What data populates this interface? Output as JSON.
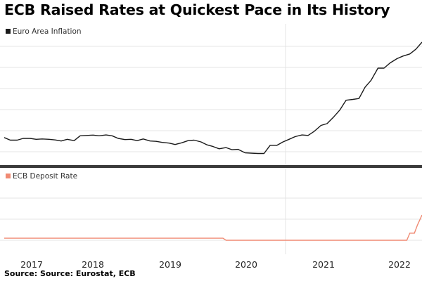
{
  "title": "ECB Raised Rates at Quickest Pace in Its History",
  "source": "Source: Source: Eurostat, ECB",
  "colors": {
    "inflation": "#1a1a1a",
    "deposit_rate": "#f08a73",
    "gridline": "#e4e4e4",
    "divider": "#3a3a3a"
  },
  "chart_data": [
    {
      "type": "line",
      "title": "",
      "legend": "Euro Area Inflation",
      "legend_placement": "top-left",
      "grid": true,
      "x_tick_labels": [
        "2017",
        "2018",
        "2019",
        "2020",
        "2021",
        "2022"
      ],
      "series": [
        {
          "name": "Euro Area Inflation",
          "x": [
            2016.8,
            2016.88,
            2016.97,
            2017.05,
            2017.14,
            2017.22,
            2017.3,
            2017.39,
            2017.47,
            2017.55,
            2017.63,
            2017.72,
            2017.8,
            2017.88,
            2017.97,
            2018.05,
            2018.14,
            2018.22,
            2018.3,
            2018.39,
            2018.47,
            2018.55,
            2018.63,
            2018.72,
            2018.8,
            2018.88,
            2018.97,
            2019.05,
            2019.14,
            2019.22,
            2019.3,
            2019.39,
            2019.47,
            2019.55,
            2019.63,
            2019.72,
            2019.8,
            2019.88,
            2019.97,
            2020.05,
            2020.14,
            2020.22,
            2020.3,
            2020.39,
            2020.47,
            2020.55,
            2020.63,
            2020.72,
            2020.8,
            2020.88,
            2020.97,
            2021.05,
            2021.14,
            2021.22,
            2021.3,
            2021.39,
            2021.47,
            2021.55,
            2021.63,
            2021.72,
            2021.8,
            2021.88,
            2021.97,
            2022.05,
            2022.14,
            2022.22,
            2022.3
          ],
          "values": [
            0.9,
            0.75,
            0.75,
            0.85,
            0.85,
            0.8,
            0.82,
            0.8,
            0.76,
            0.7,
            0.8,
            0.72,
            1.0,
            1.02,
            1.04,
            1.0,
            1.05,
            1.0,
            0.85,
            0.78,
            0.8,
            0.72,
            0.82,
            0.7,
            0.68,
            0.62,
            0.58,
            0.5,
            0.6,
            0.72,
            0.75,
            0.65,
            0.48,
            0.38,
            0.25,
            0.32,
            0.2,
            0.22,
            0.02,
            0.0,
            -0.02,
            -0.02,
            0.45,
            0.45,
            0.65,
            0.8,
            0.95,
            1.05,
            1.02,
            1.25,
            1.6,
            1.7,
            2.1,
            2.5,
            3.05,
            3.1,
            3.15,
            3.8,
            4.2,
            4.9,
            4.9,
            5.2,
            5.45,
            5.6,
            5.72,
            6.0,
            6.4
          ]
        }
      ]
    },
    {
      "type": "line",
      "title": "",
      "legend": "ECB Deposit Rate",
      "legend_placement": "top-left",
      "grid": true,
      "x_tick_labels": [
        "2017",
        "2018",
        "2019",
        "2020",
        "2021",
        "2022"
      ],
      "series": [
        {
          "name": "ECB Deposit Rate",
          "x": [
            2016.8,
            2019.68,
            2019.72,
            2022.1,
            2022.14,
            2022.2,
            2022.24,
            2022.3
          ],
          "values": [
            -0.4,
            -0.4,
            -0.5,
            -0.5,
            -0.15,
            -0.15,
            0.25,
            0.75
          ]
        }
      ]
    }
  ]
}
